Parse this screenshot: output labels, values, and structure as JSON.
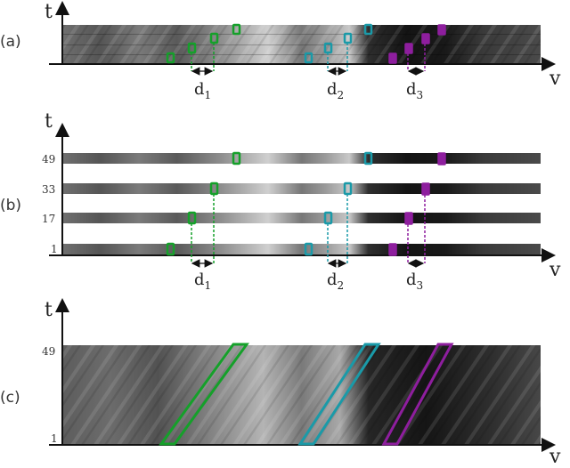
{
  "colors": {
    "green": "#15a02a",
    "teal": "#1a9aa8",
    "purple": "#8e1e9e",
    "axis": "#111111"
  },
  "axis": {
    "t_label": "t",
    "v_label": "v"
  },
  "panels": [
    {
      "id": "a",
      "label": "(a)"
    },
    {
      "id": "b",
      "label": "(b)",
      "row_ticks": [
        "49",
        "33",
        "17",
        "1"
      ]
    },
    {
      "id": "c",
      "label": "(c)",
      "row_ticks": [
        "49",
        "1"
      ]
    }
  ],
  "displacements": [
    {
      "base": "d",
      "sub": "1",
      "color": "green"
    },
    {
      "base": "d",
      "sub": "2",
      "color": "teal"
    },
    {
      "base": "d",
      "sub": "3",
      "color": "purple"
    }
  ]
}
